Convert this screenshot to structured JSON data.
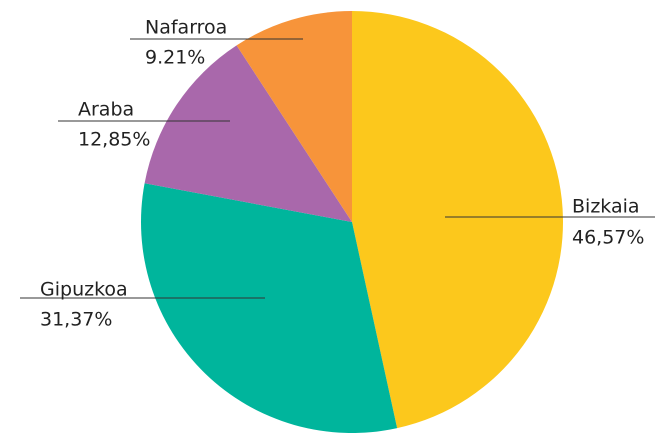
{
  "chart_data": {
    "type": "pie",
    "categories": [
      "Bizkaia",
      "Gipuzkoa",
      "Araba",
      "Nafarroa"
    ],
    "values": [
      46.57,
      31.37,
      12.85,
      9.21
    ],
    "value_labels": [
      "46,57%",
      "31,37%",
      "12,85%",
      "9.21%"
    ],
    "colors": [
      "#fcc81c",
      "#00b59c",
      "#a968ab",
      "#f7943a"
    ]
  }
}
